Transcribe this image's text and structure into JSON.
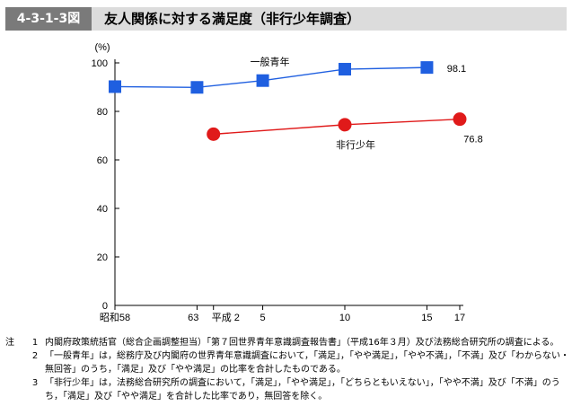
{
  "header": {
    "figure_id": "4-3-1-3図",
    "title": "友人関係に対する満足度（非行少年調査）"
  },
  "chart_data": {
    "type": "line",
    "title": "友人関係に対する満足度（非行少年調査）",
    "ylabel": "(%)",
    "ylim": [
      0,
      100
    ],
    "yticks": [
      0,
      20,
      40,
      60,
      80,
      100
    ],
    "x_ticks": [
      {
        "x": 58,
        "label": "昭和58"
      },
      {
        "x": 63,
        "label": "63"
      },
      {
        "x": 64,
        "label": "平成 2"
      },
      {
        "x": 67,
        "label": "5"
      },
      {
        "x": 72,
        "label": "10"
      },
      {
        "x": 77,
        "label": "15"
      },
      {
        "x": 79,
        "label": "17"
      }
    ],
    "series": [
      {
        "name": "一般青年",
        "marker": "square",
        "color": "#1f5fe0",
        "x": [
          58,
          63,
          67,
          72,
          77
        ],
        "values": [
          90.2,
          89.9,
          92.7,
          97.4,
          98.1
        ],
        "end_label": "98.1"
      },
      {
        "name": "非行少年",
        "marker": "circle",
        "color": "#e01a1a",
        "x": [
          64,
          72,
          79
        ],
        "values": [
          70.6,
          74.5,
          76.8
        ],
        "end_label": "76.8"
      }
    ],
    "grid": false
  },
  "notes": {
    "label": "注",
    "items": [
      {
        "num": "1",
        "text": "内閣府政策統括官（総合企画調整担当）「第７回世界青年意識調査報告書」（平成16年３月）及び法務総合研究所の調査による。"
      },
      {
        "num": "2",
        "text": "「一般青年」は，総務庁及び内閣府の世界青年意識調査において，「満足」，「やや満足」，「やや不満」，「不満」及び「わからない・無回答」のうち，「満足」及び「やや満足」の比率を合計したものである。"
      },
      {
        "num": "3",
        "text": "「非行少年」は，法務総合研究所の調査において，「満足」，「やや満足」，「どちらともいえない」，「やや不満」及び「不満」のうち，「満足」及び「やや満足」を合計した比率であり，無回答を除く。"
      }
    ]
  }
}
